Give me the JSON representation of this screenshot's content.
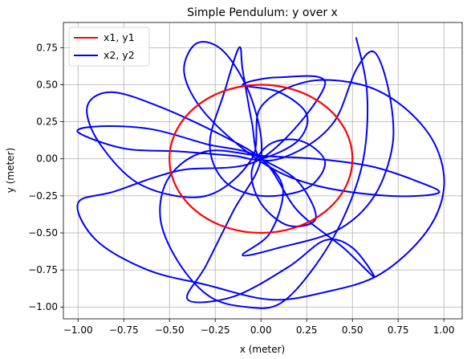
{
  "chart_data": {
    "type": "line",
    "title": "Simple Pendulum: y over x",
    "xlabel": "x (meter)",
    "ylabel": "y (meter)",
    "xlim": [
      -1.08,
      1.1
    ],
    "ylim": [
      -1.08,
      0.92
    ],
    "xticks": [
      -1.0,
      -0.75,
      -0.5,
      -0.25,
      0.0,
      0.25,
      0.5,
      0.75,
      1.0
    ],
    "yticks": [
      -1.0,
      -0.75,
      -0.5,
      -0.25,
      0.0,
      0.25,
      0.5,
      0.75
    ],
    "xtick_labels": [
      "−1.00",
      "−0.75",
      "−0.50",
      "−0.25",
      "0.00",
      "0.25",
      "0.50",
      "0.75",
      "1.00"
    ],
    "ytick_labels": [
      "−1.00",
      "−0.75",
      "−0.50",
      "−0.25",
      "0.00",
      "0.25",
      "0.50",
      "0.75"
    ],
    "grid": true,
    "legend_position": "top-left",
    "series": [
      {
        "name": "x1, y1",
        "color": "#ff0000",
        "shape": "circle",
        "radius": 0.5,
        "center": [
          0,
          0
        ]
      },
      {
        "name": "x2, y2",
        "color": "#0000ff",
        "shape": "curve",
        "points": [
          [
            0.52,
            0.82
          ],
          [
            0.58,
            0.45
          ],
          [
            0.56,
            0.0
          ],
          [
            0.45,
            -0.4
          ],
          [
            0.28,
            -0.75
          ],
          [
            0.1,
            -0.98
          ],
          [
            -0.08,
            -1.0
          ],
          [
            -0.28,
            -0.93
          ],
          [
            -0.45,
            -0.7
          ],
          [
            -0.55,
            -0.4
          ],
          [
            -0.5,
            -0.12
          ],
          [
            -0.3,
            0.05
          ],
          [
            0.0,
            0.02
          ],
          [
            0.3,
            0.0
          ],
          [
            0.6,
            -0.05
          ],
          [
            0.85,
            -0.15
          ],
          [
            0.97,
            -0.23
          ],
          [
            0.7,
            -0.25
          ],
          [
            0.3,
            -0.18
          ],
          [
            0.0,
            -0.02
          ],
          [
            -0.3,
            0.3
          ],
          [
            -0.42,
            0.58
          ],
          [
            -0.35,
            0.78
          ],
          [
            -0.2,
            0.72
          ],
          [
            -0.05,
            0.4
          ],
          [
            0.0,
            0.0
          ],
          [
            -0.15,
            -0.35
          ],
          [
            -0.3,
            -0.72
          ],
          [
            -0.4,
            -0.95
          ],
          [
            -0.15,
            -0.93
          ],
          [
            0.15,
            -0.73
          ],
          [
            0.35,
            -0.55
          ],
          [
            0.5,
            -0.6
          ],
          [
            0.62,
            -0.8
          ],
          [
            0.45,
            -0.6
          ],
          [
            0.2,
            -0.35
          ],
          [
            0.0,
            0.0
          ],
          [
            -0.3,
            0.1
          ],
          [
            -0.6,
            0.2
          ],
          [
            -0.88,
            0.22
          ],
          [
            -1.0,
            0.18
          ],
          [
            -0.75,
            0.07
          ],
          [
            -0.45,
            0.05
          ],
          [
            -0.15,
            0.02
          ],
          [
            0.0,
            0.0
          ],
          [
            0.2,
            0.12
          ],
          [
            0.25,
            0.3
          ],
          [
            0.1,
            0.45
          ],
          [
            -0.1,
            0.5
          ],
          [
            0.1,
            0.55
          ],
          [
            0.35,
            0.5
          ],
          [
            0.0,
            0.0
          ],
          [
            -0.45,
            -0.08
          ],
          [
            -0.8,
            -0.22
          ],
          [
            -1.0,
            -0.3
          ],
          [
            -0.9,
            -0.55
          ],
          [
            -0.62,
            -0.75
          ],
          [
            -0.3,
            -0.85
          ],
          [
            0.05,
            -0.95
          ],
          [
            0.35,
            -0.9
          ],
          [
            0.65,
            -0.78
          ],
          [
            0.9,
            -0.5
          ],
          [
            1.0,
            -0.2
          ],
          [
            0.95,
            0.1
          ],
          [
            0.78,
            0.35
          ],
          [
            0.55,
            0.5
          ],
          [
            0.25,
            0.52
          ],
          [
            0.0,
            0.35
          ],
          [
            -0.05,
            0.0
          ],
          [
            -0.3,
            -0.25
          ],
          [
            -0.65,
            -0.18
          ],
          [
            -0.88,
            0.1
          ],
          [
            -0.95,
            0.35
          ],
          [
            -0.82,
            0.45
          ],
          [
            -0.55,
            0.35
          ],
          [
            -0.2,
            0.15
          ],
          [
            0.0,
            0.0
          ],
          [
            0.12,
            -0.2
          ],
          [
            0.05,
            -0.5
          ],
          [
            -0.1,
            -0.65
          ],
          [
            0.1,
            -0.6
          ],
          [
            0.42,
            -0.48
          ],
          [
            0.62,
            -0.25
          ],
          [
            0.72,
            0.1
          ],
          [
            0.7,
            0.45
          ],
          [
            0.62,
            0.72
          ],
          [
            0.52,
            0.6
          ],
          [
            0.4,
            0.25
          ],
          [
            0.2,
            0.05
          ],
          [
            0.0,
            0.0
          ],
          [
            -0.05,
            0.25
          ],
          [
            -0.1,
            0.6
          ],
          [
            -0.12,
            0.75
          ],
          [
            -0.2,
            0.45
          ],
          [
            -0.28,
            0.1
          ],
          [
            -0.2,
            -0.15
          ],
          [
            0.0,
            -0.25
          ],
          [
            0.25,
            -0.2
          ],
          [
            0.35,
            -0.02
          ],
          [
            0.22,
            0.12
          ],
          [
            0.05,
            0.1
          ],
          [
            -0.05,
            -0.08
          ],
          [
            0.0,
            -0.3
          ],
          [
            0.15,
            -0.45
          ],
          [
            0.3,
            -0.4
          ],
          [
            0.2,
            -0.15
          ],
          [
            0.0,
            0.0
          ]
        ]
      }
    ]
  }
}
